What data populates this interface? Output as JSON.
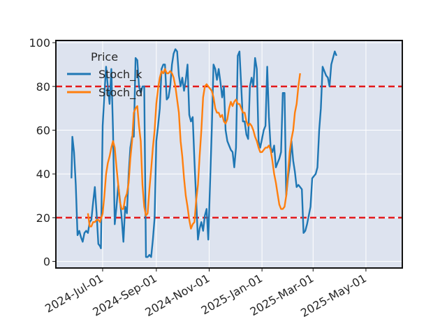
{
  "chart_data": {
    "type": "line",
    "legend": {
      "title": "Price",
      "placement": "top-left"
    },
    "ylim": [
      -3,
      101
    ],
    "yticks": [
      0,
      20,
      40,
      60,
      80,
      100
    ],
    "xlim": [
      "2024-05-08",
      "2025-06-12"
    ],
    "xticks": [
      {
        "date": "2024-07-01",
        "label": "2024-Jul-01"
      },
      {
        "date": "2024-09-01",
        "label": "2024-Sep-01"
      },
      {
        "date": "2024-11-01",
        "label": "2024-Nov-01"
      },
      {
        "date": "2025-01-01",
        "label": "2025-Jan-01"
      },
      {
        "date": "2025-03-01",
        "label": "2025-Mar-01"
      },
      {
        "date": "2025-05-01",
        "label": "2025-May-01"
      }
    ],
    "grid": true,
    "hlines": [
      {
        "y": 80,
        "color": "#e31a1c",
        "style": "dashed"
      },
      {
        "y": 20,
        "color": "#e31a1c",
        "style": "dashed"
      }
    ],
    "series": [
      {
        "name": "Stoch_k",
        "color": "#1f77b4",
        "points": [
          [
            "2024-05-26",
            38
          ],
          [
            "2024-05-27",
            57
          ],
          [
            "2024-05-29",
            50
          ],
          [
            "2024-05-31",
            35
          ],
          [
            "2024-06-02",
            12
          ],
          [
            "2024-06-04",
            14
          ],
          [
            "2024-06-06",
            11
          ],
          [
            "2024-06-08",
            9
          ],
          [
            "2024-06-10",
            13
          ],
          [
            "2024-06-12",
            14
          ],
          [
            "2024-06-14",
            13
          ],
          [
            "2024-06-16",
            18
          ],
          [
            "2024-06-18",
            19
          ],
          [
            "2024-06-20",
            27
          ],
          [
            "2024-06-22",
            34
          ],
          [
            "2024-06-24",
            22
          ],
          [
            "2024-06-26",
            8
          ],
          [
            "2024-06-28",
            7
          ],
          [
            "2024-06-29",
            6
          ],
          [
            "2024-07-01",
            62
          ],
          [
            "2024-07-03",
            76
          ],
          [
            "2024-07-05",
            89
          ],
          [
            "2024-07-07",
            80
          ],
          [
            "2024-07-09",
            72
          ],
          [
            "2024-07-11",
            88
          ],
          [
            "2024-07-13",
            60
          ],
          [
            "2024-07-15",
            17
          ],
          [
            "2024-07-17",
            25
          ],
          [
            "2024-07-19",
            35
          ],
          [
            "2024-07-21",
            28
          ],
          [
            "2024-07-23",
            20
          ],
          [
            "2024-07-25",
            9
          ],
          [
            "2024-07-27",
            25
          ],
          [
            "2024-07-29",
            22
          ],
          [
            "2024-07-31",
            40
          ],
          [
            "2024-08-02",
            52
          ],
          [
            "2024-08-04",
            57
          ],
          [
            "2024-08-06",
            57
          ],
          [
            "2024-08-08",
            93
          ],
          [
            "2024-08-10",
            92
          ],
          [
            "2024-08-12",
            80
          ],
          [
            "2024-08-14",
            77
          ],
          [
            "2024-08-16",
            80
          ],
          [
            "2024-08-18",
            80
          ],
          [
            "2024-08-20",
            2
          ],
          [
            "2024-08-22",
            2
          ],
          [
            "2024-08-24",
            3
          ],
          [
            "2024-08-26",
            2
          ],
          [
            "2024-08-28",
            10
          ],
          [
            "2024-08-30",
            20
          ],
          [
            "2024-09-01",
            55
          ],
          [
            "2024-09-03",
            62
          ],
          [
            "2024-09-05",
            70
          ],
          [
            "2024-09-07",
            88
          ],
          [
            "2024-09-09",
            90
          ],
          [
            "2024-09-11",
            90
          ],
          [
            "2024-09-13",
            74
          ],
          [
            "2024-09-15",
            75
          ],
          [
            "2024-09-17",
            80
          ],
          [
            "2024-09-19",
            90
          ],
          [
            "2024-09-21",
            95
          ],
          [
            "2024-09-23",
            97
          ],
          [
            "2024-09-25",
            96
          ],
          [
            "2024-09-27",
            85
          ],
          [
            "2024-09-29",
            80
          ],
          [
            "2024-10-01",
            84
          ],
          [
            "2024-10-03",
            78
          ],
          [
            "2024-10-05",
            83
          ],
          [
            "2024-10-07",
            90
          ],
          [
            "2024-10-09",
            67
          ],
          [
            "2024-10-11",
            64
          ],
          [
            "2024-10-13",
            66
          ],
          [
            "2024-10-15",
            46
          ],
          [
            "2024-10-17",
            28
          ],
          [
            "2024-10-19",
            10
          ],
          [
            "2024-10-21",
            15
          ],
          [
            "2024-10-23",
            18
          ],
          [
            "2024-10-25",
            14
          ],
          [
            "2024-10-27",
            21
          ],
          [
            "2024-10-29",
            24
          ],
          [
            "2024-10-31",
            10
          ],
          [
            "2024-11-02",
            35
          ],
          [
            "2024-11-04",
            60
          ],
          [
            "2024-11-06",
            90
          ],
          [
            "2024-11-08",
            88
          ],
          [
            "2024-11-10",
            83
          ],
          [
            "2024-11-12",
            88
          ],
          [
            "2024-11-14",
            82
          ],
          [
            "2024-11-16",
            75
          ],
          [
            "2024-11-18",
            80
          ],
          [
            "2024-11-20",
            60
          ],
          [
            "2024-11-22",
            55
          ],
          [
            "2024-11-24",
            53
          ],
          [
            "2024-11-26",
            51
          ],
          [
            "2024-11-28",
            50
          ],
          [
            "2024-11-30",
            43
          ],
          [
            "2024-12-02",
            52
          ],
          [
            "2024-12-04",
            94
          ],
          [
            "2024-12-06",
            96
          ],
          [
            "2024-12-08",
            80
          ],
          [
            "2024-12-10",
            64
          ],
          [
            "2024-12-12",
            64
          ],
          [
            "2024-12-14",
            58
          ],
          [
            "2024-12-16",
            56
          ],
          [
            "2024-12-18",
            80
          ],
          [
            "2024-12-20",
            84
          ],
          [
            "2024-12-22",
            80
          ],
          [
            "2024-12-24",
            93
          ],
          [
            "2024-12-26",
            88
          ],
          [
            "2024-12-28",
            55
          ],
          [
            "2024-12-30",
            52
          ],
          [
            "2025-01-01",
            56
          ],
          [
            "2025-01-03",
            60
          ],
          [
            "2025-01-05",
            62
          ],
          [
            "2025-01-07",
            89
          ],
          [
            "2025-01-09",
            66
          ],
          [
            "2025-01-11",
            52
          ],
          [
            "2025-01-13",
            50
          ],
          [
            "2025-01-15",
            53
          ],
          [
            "2025-01-17",
            43
          ],
          [
            "2025-01-19",
            45
          ],
          [
            "2025-01-21",
            47
          ],
          [
            "2025-01-23",
            50
          ],
          [
            "2025-01-25",
            77
          ],
          [
            "2025-01-27",
            77
          ],
          [
            "2025-01-29",
            30
          ],
          [
            "2025-01-31",
            38
          ],
          [
            "2025-02-02",
            44
          ],
          [
            "2025-02-04",
            55
          ],
          [
            "2025-02-06",
            46
          ],
          [
            "2025-02-08",
            41
          ],
          [
            "2025-02-10",
            34
          ],
          [
            "2025-02-12",
            35
          ],
          [
            "2025-02-14",
            34
          ],
          [
            "2025-02-16",
            33
          ],
          [
            "2025-02-18",
            13
          ],
          [
            "2025-02-20",
            14
          ],
          [
            "2025-02-22",
            17
          ],
          [
            "2025-02-24",
            21
          ],
          [
            "2025-02-26",
            25
          ],
          [
            "2025-02-28",
            38
          ],
          [
            "2025-03-02",
            39
          ],
          [
            "2025-03-04",
            40
          ],
          [
            "2025-03-06",
            43
          ],
          [
            "2025-03-08",
            60
          ],
          [
            "2025-03-10",
            70
          ],
          [
            "2025-03-12",
            89
          ],
          [
            "2025-03-14",
            87
          ],
          [
            "2025-03-16",
            85
          ],
          [
            "2025-03-18",
            84
          ],
          [
            "2025-03-20",
            80
          ],
          [
            "2025-03-22",
            90
          ],
          [
            "2025-03-24",
            93
          ],
          [
            "2025-03-26",
            96
          ],
          [
            "2025-03-28",
            94
          ]
        ]
      },
      {
        "name": "Stoch_d",
        "color": "#ff7f0e",
        "points": [
          [
            "2024-06-14",
            22
          ],
          [
            "2024-06-16",
            16
          ],
          [
            "2024-06-18",
            16
          ],
          [
            "2024-06-20",
            18
          ],
          [
            "2024-06-22",
            18
          ],
          [
            "2024-06-24",
            19
          ],
          [
            "2024-06-26",
            19
          ],
          [
            "2024-06-28",
            18
          ],
          [
            "2024-07-01",
            22
          ],
          [
            "2024-07-03",
            30
          ],
          [
            "2024-07-05",
            40
          ],
          [
            "2024-07-07",
            45
          ],
          [
            "2024-07-09",
            48
          ],
          [
            "2024-07-11",
            52
          ],
          [
            "2024-07-13",
            55
          ],
          [
            "2024-07-15",
            52
          ],
          [
            "2024-07-17",
            43
          ],
          [
            "2024-07-19",
            35
          ],
          [
            "2024-07-21",
            27
          ],
          [
            "2024-07-23",
            24
          ],
          [
            "2024-07-25",
            24
          ],
          [
            "2024-07-27",
            29
          ],
          [
            "2024-07-29",
            31
          ],
          [
            "2024-07-31",
            36
          ],
          [
            "2024-08-02",
            47
          ],
          [
            "2024-08-04",
            55
          ],
          [
            "2024-08-06",
            68
          ],
          [
            "2024-08-08",
            70
          ],
          [
            "2024-08-10",
            71
          ],
          [
            "2024-08-12",
            62
          ],
          [
            "2024-08-14",
            55
          ],
          [
            "2024-08-16",
            35
          ],
          [
            "2024-08-18",
            25
          ],
          [
            "2024-08-20",
            21
          ],
          [
            "2024-08-22",
            22
          ],
          [
            "2024-08-24",
            33
          ],
          [
            "2024-08-26",
            42
          ],
          [
            "2024-08-28",
            52
          ],
          [
            "2024-08-30",
            60
          ],
          [
            "2024-09-01",
            72
          ],
          [
            "2024-09-03",
            79
          ],
          [
            "2024-09-05",
            84
          ],
          [
            "2024-09-07",
            87
          ],
          [
            "2024-09-09",
            86
          ],
          [
            "2024-09-11",
            88
          ],
          [
            "2024-09-13",
            86
          ],
          [
            "2024-09-15",
            86
          ],
          [
            "2024-09-17",
            87
          ],
          [
            "2024-09-19",
            86
          ],
          [
            "2024-09-21",
            84
          ],
          [
            "2024-09-23",
            80
          ],
          [
            "2024-09-25",
            74
          ],
          [
            "2024-09-27",
            68
          ],
          [
            "2024-09-29",
            55
          ],
          [
            "2024-10-01",
            48
          ],
          [
            "2024-10-03",
            38
          ],
          [
            "2024-10-05",
            30
          ],
          [
            "2024-10-07",
            25
          ],
          [
            "2024-10-09",
            19
          ],
          [
            "2024-10-11",
            15
          ],
          [
            "2024-10-13",
            17
          ],
          [
            "2024-10-15",
            18
          ],
          [
            "2024-10-17",
            28
          ],
          [
            "2024-10-19",
            35
          ],
          [
            "2024-10-21",
            48
          ],
          [
            "2024-10-23",
            60
          ],
          [
            "2024-10-25",
            75
          ],
          [
            "2024-10-27",
            80
          ],
          [
            "2024-10-29",
            81
          ],
          [
            "2024-10-31",
            80
          ],
          [
            "2024-11-02",
            79
          ],
          [
            "2024-11-04",
            78
          ],
          [
            "2024-11-06",
            75
          ],
          [
            "2024-11-08",
            70
          ],
          [
            "2024-11-10",
            68
          ],
          [
            "2024-11-12",
            68
          ],
          [
            "2024-11-14",
            66
          ],
          [
            "2024-11-16",
            67
          ],
          [
            "2024-11-18",
            64
          ],
          [
            "2024-11-20",
            63
          ],
          [
            "2024-11-22",
            65
          ],
          [
            "2024-11-24",
            70
          ],
          [
            "2024-11-26",
            73
          ],
          [
            "2024-11-28",
            71
          ],
          [
            "2024-11-30",
            73
          ],
          [
            "2024-12-02",
            74
          ],
          [
            "2024-12-04",
            72
          ],
          [
            "2024-12-06",
            72
          ],
          [
            "2024-12-08",
            70
          ],
          [
            "2024-12-10",
            68
          ],
          [
            "2024-12-12",
            68
          ],
          [
            "2024-12-14",
            64
          ],
          [
            "2024-12-16",
            62
          ],
          [
            "2024-12-18",
            63
          ],
          [
            "2024-12-20",
            62
          ],
          [
            "2024-12-22",
            60
          ],
          [
            "2024-12-24",
            57
          ],
          [
            "2024-12-26",
            55
          ],
          [
            "2024-12-28",
            52
          ],
          [
            "2024-12-30",
            50
          ],
          [
            "2025-01-01",
            50
          ],
          [
            "2025-01-03",
            51
          ],
          [
            "2025-01-05",
            52
          ],
          [
            "2025-01-07",
            52
          ],
          [
            "2025-01-09",
            53
          ],
          [
            "2025-01-11",
            51
          ],
          [
            "2025-01-13",
            46
          ],
          [
            "2025-01-15",
            40
          ],
          [
            "2025-01-17",
            36
          ],
          [
            "2025-01-19",
            31
          ],
          [
            "2025-01-21",
            26
          ],
          [
            "2025-01-23",
            24
          ],
          [
            "2025-01-25",
            24
          ],
          [
            "2025-01-27",
            25
          ],
          [
            "2025-01-29",
            30
          ],
          [
            "2025-01-31",
            40
          ],
          [
            "2025-02-02",
            50
          ],
          [
            "2025-02-04",
            56
          ],
          [
            "2025-02-06",
            60
          ],
          [
            "2025-02-08",
            68
          ],
          [
            "2025-02-10",
            72
          ],
          [
            "2025-02-12",
            80
          ],
          [
            "2025-02-14",
            86
          ]
        ]
      }
    ]
  }
}
